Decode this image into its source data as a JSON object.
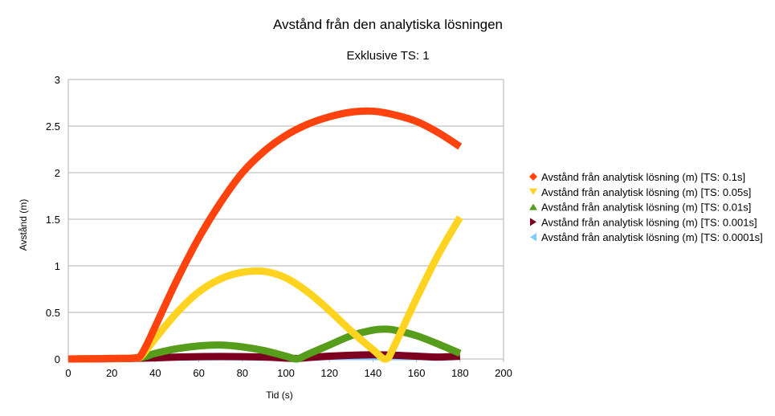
{
  "chart_data": {
    "type": "line",
    "title": "Avstånd från den analytiska lösningen",
    "subtitle": "Exklusive TS: 1",
    "xlabel": "Tid (s)",
    "ylabel": "Avstånd (m)",
    "xlim": [
      0,
      200
    ],
    "ylim": [
      0,
      3
    ],
    "xticks": [
      0,
      20,
      40,
      60,
      80,
      100,
      120,
      140,
      160,
      180,
      200
    ],
    "yticks": [
      0,
      0.5,
      1,
      1.5,
      2,
      2.5,
      3
    ],
    "ytick_labels": [
      "0",
      "0.5",
      "1",
      "1.5",
      "2",
      "2.5",
      "3"
    ],
    "grid": "horizontal",
    "legend_position": "right",
    "series": [
      {
        "name": "Avstånd från analytisk lösning (m) [TS: 0.1s]",
        "color": "#ff420e",
        "marker": "diamond",
        "x": [
          0,
          20,
          30,
          33,
          36,
          40,
          50,
          60,
          70,
          80,
          90,
          100,
          110,
          120,
          130,
          140,
          150,
          160,
          170,
          180
        ],
        "y": [
          0,
          0.005,
          0.01,
          0.03,
          0.15,
          0.35,
          0.85,
          1.3,
          1.68,
          2.0,
          2.23,
          2.4,
          2.52,
          2.6,
          2.65,
          2.66,
          2.62,
          2.55,
          2.43,
          2.28
        ]
      },
      {
        "name": "Avstånd från analytisk lösning (m) [TS: 0.05s]",
        "color": "#ffd320",
        "marker": "triangle-down",
        "x": [
          0,
          20,
          30,
          33,
          36,
          40,
          50,
          60,
          70,
          80,
          90,
          100,
          110,
          120,
          130,
          140,
          146,
          150,
          160,
          170,
          180
        ],
        "y": [
          0,
          0.005,
          0.01,
          0.02,
          0.1,
          0.22,
          0.5,
          0.72,
          0.86,
          0.93,
          0.94,
          0.87,
          0.72,
          0.52,
          0.3,
          0.1,
          0.0,
          0.15,
          0.65,
          1.12,
          1.52
        ]
      },
      {
        "name": "Avstånd från analytisk lösning (m) [TS: 0.01s]",
        "color": "#579d1c",
        "marker": "triangle-up",
        "x": [
          0,
          20,
          30,
          33,
          36,
          40,
          50,
          60,
          70,
          80,
          90,
          100,
          105,
          110,
          120,
          130,
          140,
          146,
          150,
          160,
          170,
          180
        ],
        "y": [
          0,
          0.005,
          0.01,
          0.015,
          0.03,
          0.06,
          0.11,
          0.14,
          0.15,
          0.13,
          0.09,
          0.03,
          0.0,
          0.05,
          0.15,
          0.25,
          0.31,
          0.32,
          0.31,
          0.25,
          0.16,
          0.06
        ]
      },
      {
        "name": "Avstånd från analytisk lösning (m) [TS: 0.001s]",
        "color": "#7e0021",
        "marker": "triangle-right",
        "x": [
          0,
          20,
          30,
          40,
          50,
          60,
          70,
          80,
          90,
          100,
          105,
          110,
          120,
          130,
          140,
          150,
          160,
          170,
          180
        ],
        "y": [
          0,
          0.003,
          0.006,
          0.012,
          0.02,
          0.025,
          0.027,
          0.025,
          0.02,
          0.01,
          0.005,
          0.015,
          0.03,
          0.04,
          0.045,
          0.04,
          0.03,
          0.02,
          0.03
        ]
      },
      {
        "name": "Avstånd från analytisk lösning (m) [TS: 0.0001s]",
        "color": "#83caff",
        "marker": "triangle-left",
        "x": [
          0,
          40,
          80,
          120,
          160,
          180
        ],
        "y": [
          0,
          0.0,
          0.002,
          0.004,
          0.003,
          0.004
        ]
      }
    ]
  }
}
